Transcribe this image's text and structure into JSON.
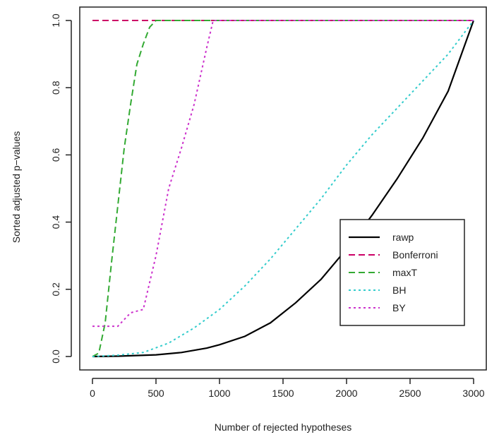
{
  "chart_data": {
    "type": "line",
    "xlabel": "Number of rejected hypotheses",
    "ylabel": "Sorted adjusted p−values",
    "xlim": [
      -100,
      3100
    ],
    "ylim": [
      -0.04,
      1.04
    ],
    "x_ticks": [
      0,
      500,
      1000,
      1500,
      2000,
      2500,
      3000
    ],
    "x_tick_labels": [
      "0",
      "500",
      "1000",
      "1500",
      "2000",
      "2500",
      "3000"
    ],
    "y_ticks": [
      0.0,
      0.2,
      0.4,
      0.6,
      0.8,
      1.0
    ],
    "y_tick_labels": [
      "0.0",
      "0.2",
      "0.4",
      "0.6",
      "0.8",
      "1.0"
    ],
    "grid": false,
    "legend_position": "right",
    "series": [
      {
        "name": "rawp",
        "color": "#000000",
        "dash": "solid",
        "x": [
          0,
          200,
          500,
          700,
          900,
          1000,
          1200,
          1400,
          1600,
          1800,
          2000,
          2200,
          2400,
          2600,
          2800,
          3000
        ],
        "y": [
          0.0,
          0.001,
          0.005,
          0.012,
          0.025,
          0.035,
          0.06,
          0.1,
          0.16,
          0.23,
          0.32,
          0.42,
          0.53,
          0.65,
          0.79,
          1.0
        ]
      },
      {
        "name": "Bonferroni",
        "color": "#cc0066",
        "dash": "dashed",
        "x": [
          0,
          3000
        ],
        "y": [
          1.0,
          1.0
        ]
      },
      {
        "name": "maxT",
        "color": "#33aa33",
        "dash": "dashed",
        "x": [
          0,
          50,
          100,
          150,
          200,
          250,
          300,
          350,
          400,
          450,
          500,
          3000
        ],
        "y": [
          0.0,
          0.01,
          0.1,
          0.28,
          0.45,
          0.62,
          0.75,
          0.87,
          0.93,
          0.98,
          1.0,
          1.0
        ]
      },
      {
        "name": "BH",
        "color": "#33cccc",
        "dash": "dotted",
        "x": [
          0,
          200,
          400,
          600,
          800,
          1000,
          1200,
          1400,
          1600,
          1800,
          2000,
          2200,
          2400,
          2600,
          2800,
          3000
        ],
        "y": [
          0.0,
          0.004,
          0.012,
          0.04,
          0.085,
          0.14,
          0.21,
          0.29,
          0.38,
          0.47,
          0.57,
          0.66,
          0.74,
          0.82,
          0.9,
          1.0
        ]
      },
      {
        "name": "BY",
        "color": "#cc33cc",
        "dash": "dotted",
        "x": [
          0,
          100,
          200,
          300,
          400,
          500,
          600,
          700,
          800,
          900,
          950,
          1000,
          3000
        ],
        "y": [
          0.09,
          0.09,
          0.09,
          0.13,
          0.14,
          0.3,
          0.5,
          0.62,
          0.75,
          0.92,
          1.0,
          1.0,
          1.0
        ]
      }
    ]
  }
}
